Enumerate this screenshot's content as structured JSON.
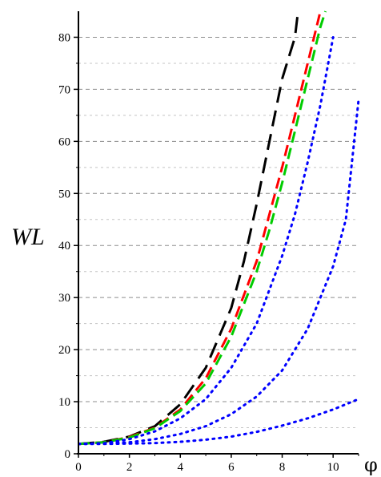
{
  "chart_data": {
    "type": "line",
    "xlabel": "φ",
    "ylabel": "WL",
    "xlim": [
      0,
      11
    ],
    "ylim": [
      0,
      85
    ],
    "x_ticks": [
      "0",
      "2",
      "4",
      "6",
      "8",
      "10"
    ],
    "y_ticks": [
      "0",
      "10",
      "20",
      "30",
      "40",
      "50",
      "60",
      "70",
      "80"
    ],
    "grid": "horizontal dashed, major and minor",
    "legend": "none",
    "series": [
      {
        "color": "#000000",
        "style": "long-dash",
        "x": [
          0,
          1,
          2,
          3,
          4,
          5,
          6,
          6.5,
          7,
          7.5,
          8,
          8.5,
          8.6
        ],
        "y": [
          1.9,
          2.3,
          3.3,
          5.3,
          9.5,
          16.5,
          28,
          37,
          48,
          60,
          72,
          80,
          84
        ]
      },
      {
        "color": "#ff0000",
        "style": "dash",
        "x": [
          0,
          1,
          2,
          3,
          4,
          5,
          6,
          7,
          7.5,
          8,
          8.5,
          9,
          9.5
        ],
        "y": [
          1.9,
          2.2,
          3.2,
          5.0,
          8.5,
          14.5,
          24,
          37,
          46,
          55,
          65,
          75,
          85
        ]
      },
      {
        "color": "#00cc00",
        "style": "dash",
        "x": [
          0,
          1,
          2,
          3,
          4,
          5,
          6,
          7,
          7.5,
          8,
          8.5,
          9,
          9.5,
          9.7
        ],
        "y": [
          1.9,
          2.2,
          3.1,
          4.9,
          8.2,
          13.5,
          22.5,
          35,
          43,
          52,
          62,
          72,
          82,
          85
        ]
      },
      {
        "color": "#0000ff",
        "style": "dot",
        "x": [
          0,
          1,
          2,
          3,
          4,
          5,
          6,
          7,
          8,
          8.5,
          9,
          9.5,
          10
        ],
        "y": [
          1.9,
          2.0,
          2.8,
          4.3,
          6.8,
          10.5,
          16.5,
          25,
          38,
          46,
          56,
          67,
          80
        ]
      },
      {
        "color": "#0000ff",
        "style": "dot",
        "x": [
          0,
          1,
          2,
          3,
          4,
          5,
          6,
          7,
          8,
          9,
          10,
          10.5,
          11
        ],
        "y": [
          1.9,
          1.95,
          2.2,
          2.8,
          3.8,
          5.3,
          7.6,
          11,
          16,
          24,
          36,
          45,
          68
        ]
      },
      {
        "color": "#0000ff",
        "style": "dot",
        "x": [
          0,
          1,
          2,
          3,
          4,
          5,
          6,
          7,
          8,
          9,
          10,
          11
        ],
        "y": [
          1.9,
          1.9,
          1.95,
          2.05,
          2.3,
          2.7,
          3.3,
          4.2,
          5.4,
          6.8,
          8.5,
          10.5
        ]
      }
    ]
  }
}
